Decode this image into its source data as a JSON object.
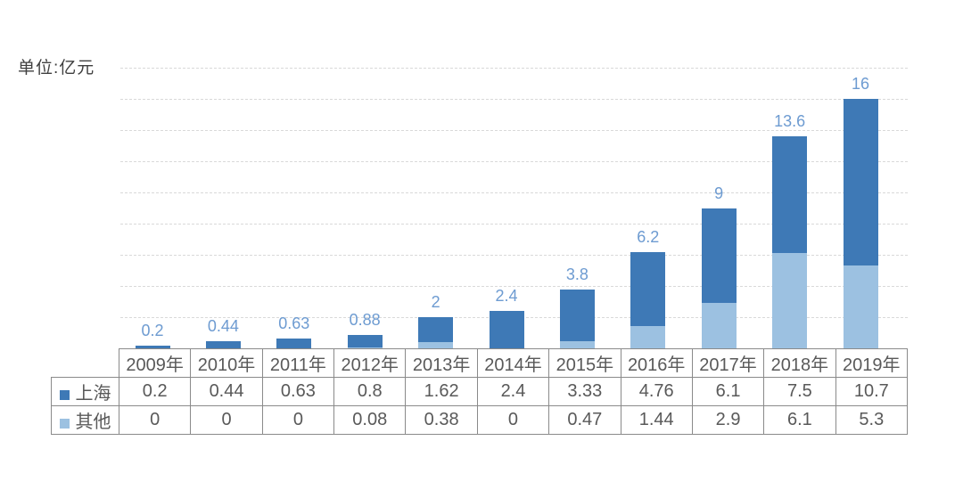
{
  "chart": {
    "unit_label": "单位:亿元"
  },
  "chart_data": {
    "type": "bar",
    "subtype": "stacked",
    "title": "",
    "unit": "亿元",
    "categories": [
      "2009年",
      "2010年",
      "2011年",
      "2012年",
      "2013年",
      "2014年",
      "2015年",
      "2016年",
      "2017年",
      "2018年",
      "2019年"
    ],
    "series": [
      {
        "name": "上海",
        "key": "shanghai",
        "color": "#3e79b6",
        "values": [
          0.2,
          0.44,
          0.63,
          0.8,
          1.62,
          2.4,
          3.33,
          4.76,
          6.1,
          7.5,
          10.7
        ]
      },
      {
        "name": "其他",
        "key": "others",
        "color": "#9cc1e1",
        "values": [
          0,
          0,
          0,
          0.08,
          0.38,
          0,
          0.47,
          1.44,
          2.9,
          6.1,
          5.3
        ]
      }
    ],
    "stack_order_bottom_to_top": [
      "其他",
      "上海"
    ],
    "total_labels": [
      "0.2",
      "0.44",
      "0.63",
      "0.88",
      "2",
      "2.4",
      "3.8",
      "6.2",
      "9",
      "13.6",
      "16"
    ],
    "ylim": [
      0,
      18
    ],
    "gridline_step": 2,
    "grid": {
      "horizontal": true,
      "style": "dashed",
      "color": "#d9d9d9"
    },
    "label_color": "#6d9bd1",
    "table_border_color": "#8a8a8a",
    "table_text_color": "#595959",
    "legend_position": "table-left-column",
    "xlabel": "",
    "ylabel": ""
  }
}
